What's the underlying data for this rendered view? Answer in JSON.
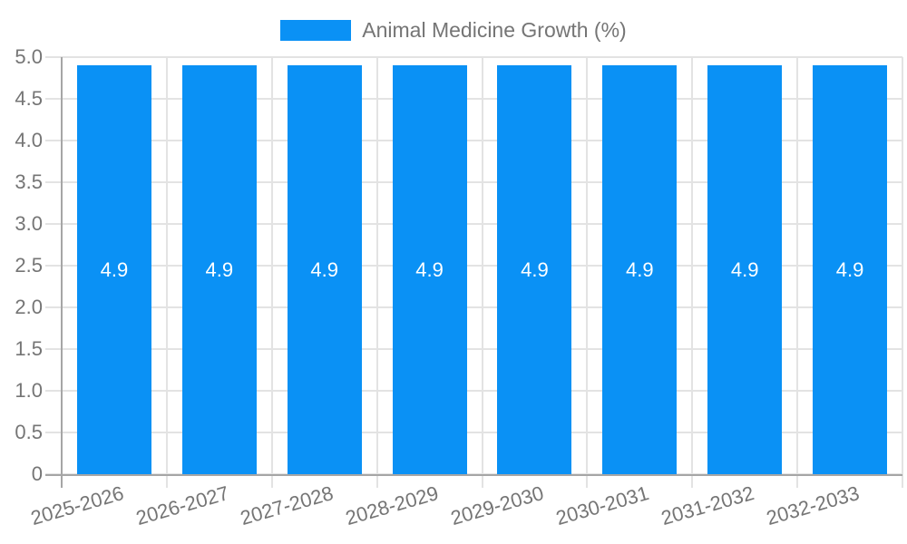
{
  "chart_data": {
    "type": "bar",
    "title": "",
    "legend_label": "Animal Medicine Growth (%)",
    "legend_position": "top",
    "categories": [
      "2025-2026",
      "2026-2027",
      "2027-2028",
      "2028-2029",
      "2029-2030",
      "2030-2031",
      "2031-2032",
      "2032-2033"
    ],
    "values": [
      4.9,
      4.9,
      4.9,
      4.9,
      4.9,
      4.9,
      4.9,
      4.9
    ],
    "bar_labels": [
      "4.9",
      "4.9",
      "4.9",
      "4.9",
      "4.9",
      "4.9",
      "4.9",
      "4.9"
    ],
    "xlabel": "",
    "ylabel": "",
    "ylim": [
      0,
      5
    ],
    "ytick_values": [
      0,
      0.5,
      1,
      1.5,
      2,
      2.5,
      3,
      3.5,
      4,
      4.5,
      5
    ],
    "ytick_labels": [
      "0",
      "0.5",
      "1.0",
      "1.5",
      "2.0",
      "2.5",
      "3.0",
      "3.5",
      "4.0",
      "4.5",
      "5.0"
    ],
    "grid": true,
    "colors": {
      "bar": "#0a91f5",
      "grid": "#e3e3e3",
      "axis": "#a6a6a6",
      "tick_label": "#757575",
      "bar_label": "#ffffff",
      "background": "#ffffff"
    }
  }
}
